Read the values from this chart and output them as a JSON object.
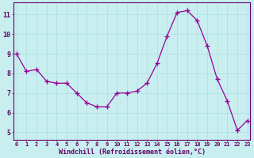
{
  "x": [
    0,
    1,
    2,
    3,
    4,
    5,
    6,
    7,
    8,
    9,
    10,
    11,
    12,
    13,
    14,
    15,
    16,
    17,
    18,
    19,
    20,
    21,
    22,
    23
  ],
  "y": [
    9.0,
    8.1,
    8.2,
    7.6,
    7.5,
    7.5,
    7.0,
    6.5,
    6.3,
    6.3,
    7.0,
    7.0,
    7.1,
    7.5,
    8.5,
    9.9,
    11.1,
    11.2,
    10.7,
    9.4,
    7.7,
    6.6,
    5.1,
    5.6
  ],
  "x_ticks": [
    0,
    1,
    2,
    3,
    4,
    5,
    6,
    7,
    8,
    9,
    10,
    11,
    12,
    13,
    14,
    15,
    16,
    17,
    18,
    19,
    20,
    21,
    22,
    23
  ],
  "x_tick_labels": [
    "0",
    "1",
    "2",
    "3",
    "4",
    "5",
    "6",
    "7",
    "8",
    "9",
    "10",
    "11",
    "12",
    "13",
    "14",
    "15",
    "16",
    "17",
    "18",
    "19",
    "20",
    "21",
    "22",
    "23"
  ],
  "y_ticks": [
    5,
    6,
    7,
    8,
    9,
    10,
    11
  ],
  "xlim": [
    -0.3,
    23.3
  ],
  "ylim": [
    4.6,
    11.6
  ],
  "xlabel": "Windchill (Refroidissement éolien,°C)",
  "line_color": "#990099",
  "marker_color": "#990099",
  "bg_color": "#c8eef0",
  "grid_color": "#aadddd",
  "plot_bg": "#c8eef0",
  "axis_color": "#660066",
  "tick_color": "#660066",
  "label_color": "#660066",
  "spine_color": "#660066"
}
